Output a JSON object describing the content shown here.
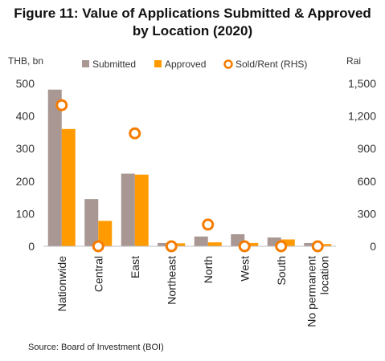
{
  "title_line1": "Figure 11: Value of Applications Submitted & Approved",
  "title_line2": "by Location (2020)",
  "source": "Source: Board of Investment (BOI)",
  "colors": {
    "submitted": "#A89793",
    "approved": "#FF9A00",
    "sold_rent": "#F57C00"
  },
  "chart_data": {
    "type": "bar",
    "categories": [
      "Nationwide",
      "Central",
      "East",
      "Northeast",
      "North",
      "West",
      "South",
      "No permanent location"
    ],
    "category_lines": [
      [
        "Nationwide"
      ],
      [
        "Central"
      ],
      [
        "East"
      ],
      [
        "Northeast"
      ],
      [
        "North"
      ],
      [
        "West"
      ],
      [
        "South"
      ],
      [
        "No permanent",
        "location"
      ]
    ],
    "series": [
      {
        "name": "Submitted",
        "axis": "left",
        "values": [
          481,
          145,
          223,
          10,
          30,
          37,
          27,
          10
        ]
      },
      {
        "name": "Approved",
        "axis": "left",
        "values": [
          360,
          78,
          220,
          9,
          12,
          10,
          21,
          7
        ]
      },
      {
        "name": "Sold/Rent (RHS)",
        "axis": "right",
        "kind": "marker",
        "values": [
          1300,
          0,
          1040,
          0,
          200,
          0,
          0,
          0
        ]
      }
    ],
    "ylabel_left": "THB, bn",
    "ylabel_right": "Rai",
    "ylim_left": [
      0,
      500
    ],
    "ylim_right": [
      0,
      1500
    ],
    "yticks_left": [
      "0",
      "100",
      "200",
      "300",
      "400",
      "500"
    ],
    "yticks_right": [
      "0",
      "300",
      "600",
      "900",
      "1,200",
      "1,500"
    ],
    "legend_position": "top",
    "grid": false
  }
}
